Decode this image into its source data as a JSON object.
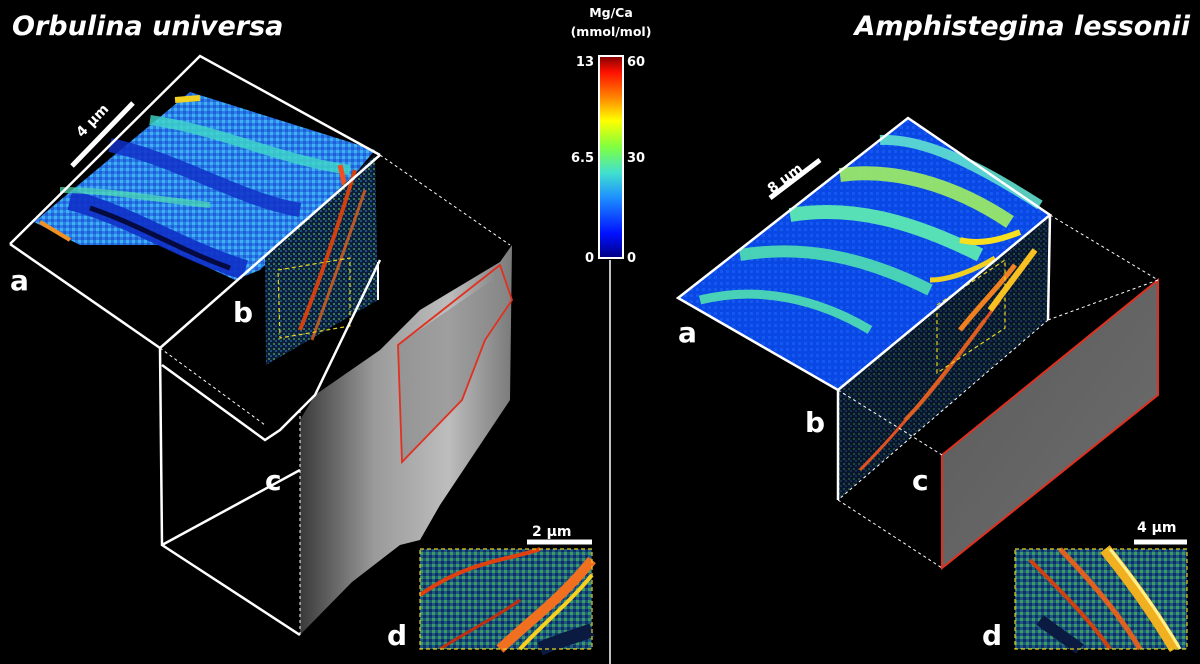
{
  "left": {
    "title": "Orbulina universa",
    "scale_top": "4 µm",
    "scale_inset": "2 µm",
    "labels": {
      "a": "a",
      "b": "b",
      "c": "c",
      "d": "d"
    }
  },
  "right": {
    "title": "Amphistegina lessonii",
    "scale_top": "8 µm",
    "scale_inset": "4 µm",
    "labels": {
      "a": "a",
      "b": "b",
      "c": "c",
      "d": "d"
    }
  },
  "colorbar": {
    "title_line1": "Mg/Ca",
    "title_line2": "(mmol/mol)",
    "left_ticks": [
      "13",
      "6.5",
      "0"
    ],
    "right_ticks": [
      "60",
      "30",
      "0"
    ]
  },
  "colors": {
    "frame": "#ffffff",
    "fib_outline": "#e03020",
    "inset_outline": "#e8d020"
  }
}
